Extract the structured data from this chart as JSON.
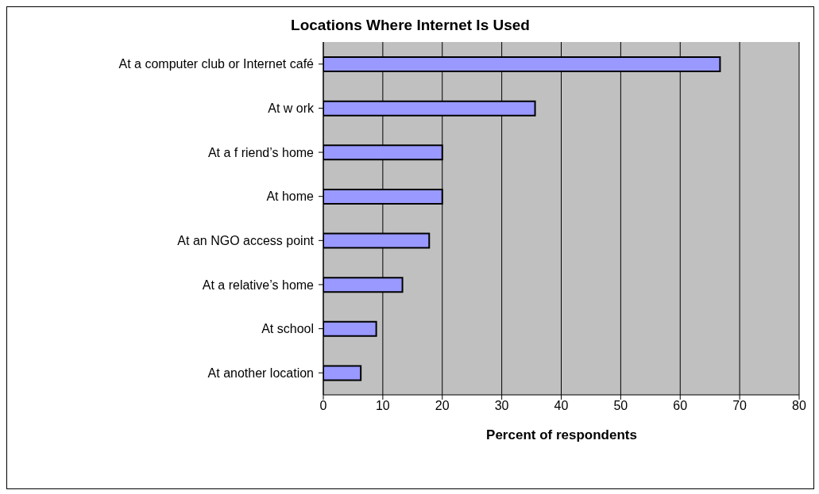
{
  "chart_data": {
    "type": "bar",
    "orientation": "horizontal",
    "title": "Locations Where Internet Is Used",
    "xlabel": "Percent of respondents",
    "categories": [
      "At a computer club or Internet café",
      "At w ork",
      "At a f riend’s home",
      "At home",
      "At an NGO access point",
      "At a relative’s home",
      "At school",
      "At another location"
    ],
    "values": [
      66.7,
      35.6,
      20,
      20,
      17.8,
      13.3,
      8.9,
      6.3
    ],
    "color": "#9999ff",
    "xlim": [
      0,
      80
    ],
    "xticks": [
      0,
      10,
      20,
      30,
      40,
      50,
      60,
      70,
      80
    ],
    "grid": "x"
  }
}
